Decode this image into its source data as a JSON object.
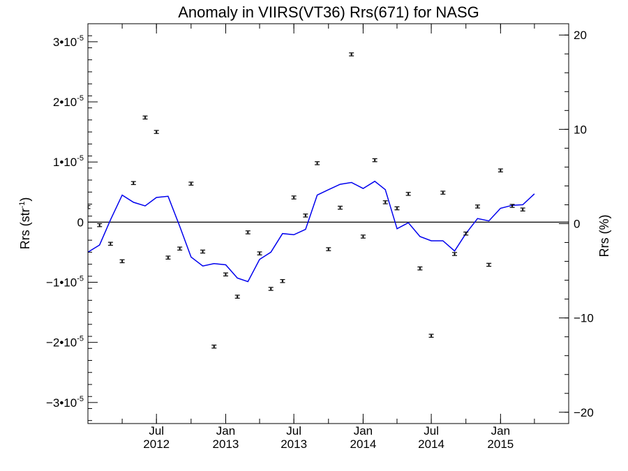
{
  "chart_data": {
    "type": "line",
    "title": "Anomaly in VIIRS(VT36) Rrs(671) for NASG",
    "ylabel_left": "Rrs (str",
    "ylabel_left_sup": "-1",
    "ylabel_left_tail": ")",
    "ylabel_right": "Rrs (%)",
    "xlim": [
      "2012-01-01",
      "2015-07-01"
    ],
    "ylim": [
      -3.35e-05,
      3.3e-05
    ],
    "ylim_right": [
      -21.2,
      21.2
    ],
    "x_ticks": [
      {
        "date": "2012-07-01",
        "line1": "Jul",
        "line2": "2012"
      },
      {
        "date": "2013-01-01",
        "line1": "Jan",
        "line2": "2013"
      },
      {
        "date": "2013-07-01",
        "line1": "Jul",
        "line2": "2013"
      },
      {
        "date": "2014-01-01",
        "line1": "Jan",
        "line2": "2014"
      },
      {
        "date": "2014-07-01",
        "line1": "Jul",
        "line2": "2014"
      },
      {
        "date": "2015-01-01",
        "line1": "Jan",
        "line2": "2015"
      }
    ],
    "y_ticks_left": [
      {
        "value": 3e-05,
        "mant": "3•10",
        "exp": "-5"
      },
      {
        "value": 2e-05,
        "mant": "2•10",
        "exp": "-5"
      },
      {
        "value": 1e-05,
        "mant": "1•10",
        "exp": "-5"
      },
      {
        "value": 0,
        "mant": "0",
        "exp": ""
      },
      {
        "value": -1e-05,
        "mant": "−1•10",
        "exp": "-5"
      },
      {
        "value": -2e-05,
        "mant": "−2•10",
        "exp": "-5"
      },
      {
        "value": -3e-05,
        "mant": "−3•10",
        "exp": "-5"
      }
    ],
    "y_ticks_right": [
      {
        "value": 20,
        "label": "20"
      },
      {
        "value": 10,
        "label": "10"
      },
      {
        "value": 0,
        "label": "0"
      },
      {
        "value": -10,
        "label": "−10"
      },
      {
        "value": -20,
        "label": "−20"
      }
    ],
    "zero_line": 0,
    "series": [
      {
        "style": "points_with_errorbars",
        "color": "#000000",
        "axis": "left",
        "error": 2.5e-07,
        "x": [
          "2012-01-01",
          "2012-02-01",
          "2012-03-01",
          "2012-04-01",
          "2012-05-01",
          "2012-06-01",
          "2012-07-01",
          "2012-08-01",
          "2012-09-01",
          "2012-10-01",
          "2012-11-01",
          "2012-12-01",
          "2013-01-01",
          "2013-02-01",
          "2013-03-01",
          "2013-04-01",
          "2013-05-01",
          "2013-06-01",
          "2013-07-01",
          "2013-08-01",
          "2013-09-01",
          "2013-10-01",
          "2013-11-01",
          "2013-12-01",
          "2014-01-01",
          "2014-02-01",
          "2014-03-01",
          "2014-04-01",
          "2014-05-01",
          "2014-06-01",
          "2014-07-01",
          "2014-08-01",
          "2014-09-01",
          "2014-10-01",
          "2014-11-01",
          "2014-12-01",
          "2015-01-01",
          "2015-02-01",
          "2015-03-01"
        ],
        "y": [
          2.5e-06,
          -5e-07,
          -3.6e-06,
          -6.5e-06,
          6.5e-06,
          1.74e-05,
          1.5e-05,
          -5.9e-06,
          -4.4e-06,
          6.4e-06,
          -4.9e-06,
          -2.07e-05,
          -8.7e-06,
          -1.24e-05,
          -1.7e-06,
          -5.2e-06,
          -1.11e-05,
          -9.8e-06,
          4.1e-06,
          1.1e-06,
          9.8e-06,
          -4.5e-06,
          2.4e-06,
          2.79e-05,
          -2.4e-06,
          1.03e-05,
          3.3e-06,
          2.3e-06,
          4.7e-06,
          -7.7e-06,
          -1.89e-05,
          4.9e-06,
          -5.3e-06,
          -1.9e-06,
          2.6e-06,
          -7.1e-06,
          8.6e-06,
          2.7e-06,
          2.1e-06
        ]
      },
      {
        "style": "line",
        "color": "#0000ee",
        "axis": "left",
        "x": [
          "2012-01-01",
          "2012-02-01",
          "2012-03-01",
          "2012-04-01",
          "2012-05-01",
          "2012-06-01",
          "2012-07-01",
          "2012-08-01",
          "2012-09-01",
          "2012-10-01",
          "2012-11-01",
          "2012-12-01",
          "2013-01-01",
          "2013-02-01",
          "2013-03-01",
          "2013-04-01",
          "2013-05-01",
          "2013-06-01",
          "2013-07-01",
          "2013-08-01",
          "2013-09-01",
          "2013-10-01",
          "2013-11-01",
          "2013-12-01",
          "2014-01-01",
          "2014-02-01",
          "2014-03-01",
          "2014-04-01",
          "2014-05-01",
          "2014-06-01",
          "2014-07-01",
          "2014-08-01",
          "2014-09-01",
          "2014-10-01",
          "2014-11-01",
          "2014-12-01",
          "2015-01-01",
          "2015-02-01",
          "2015-03-01",
          "2015-04-01"
        ],
        "y": [
          -5e-06,
          -3.8e-06,
          4e-07,
          4.5e-06,
          3.3e-06,
          2.7e-06,
          4.1e-06,
          4.3e-06,
          -7e-07,
          -5.8e-06,
          -7.3e-06,
          -6.9e-06,
          -7.1e-06,
          -9.3e-06,
          -9.9e-06,
          -6.2e-06,
          -5e-06,
          -1.9e-06,
          -2.1e-06,
          -1.2e-06,
          4.5e-06,
          5.4e-06,
          6.3e-06,
          6.6e-06,
          5.6e-06,
          6.8e-06,
          5.4e-06,
          -1.1e-06,
          -1e-07,
          -2.4e-06,
          -3.1e-06,
          -3.1e-06,
          -4.8e-06,
          -1.9e-06,
          6e-07,
          2e-07,
          2.3e-06,
          2.8e-06,
          2.9e-06,
          4.7e-06
        ]
      }
    ]
  }
}
